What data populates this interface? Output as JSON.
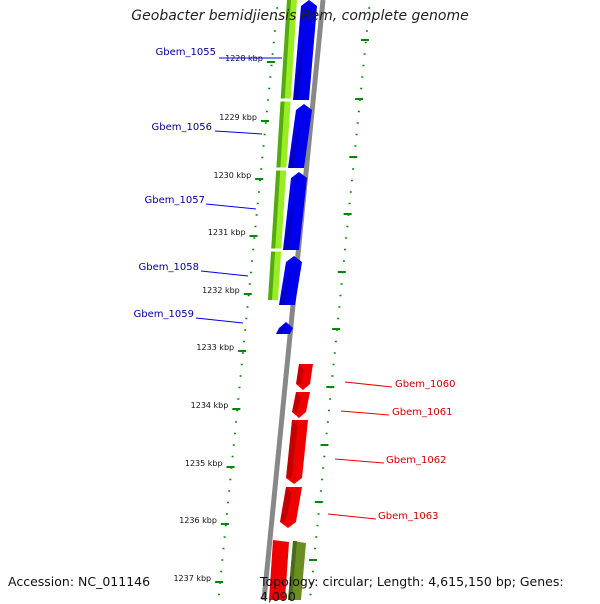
{
  "title": "Geobacter bemidjiensis Bem, complete genome",
  "accession": "Accession: NC_011146",
  "topology": "Topology: circular; Length: 4,615,150 bp; Genes: 4,090",
  "colors": {
    "gene_blue": "#0000ee",
    "gene_red": "#ee0000",
    "cds_green": "#99ee22",
    "cds_olive": "#6b8e23",
    "backbone": "#888888",
    "tick_green": "#008800",
    "label_blue": "#000099",
    "label_red": "#cc0000"
  },
  "kbp_labels": [
    "1228 kbp",
    "1229 kbp",
    "1230 kbp",
    "1231 kbp",
    "1232 kbp",
    "1233 kbp",
    "1234 kbp",
    "1235 kbp",
    "1236 kbp",
    "1237 kbp"
  ],
  "genes": [
    {
      "name": "Gbem_1055",
      "strand": "+",
      "color": "blue"
    },
    {
      "name": "Gbem_1056",
      "strand": "+",
      "color": "blue"
    },
    {
      "name": "Gbem_1057",
      "strand": "+",
      "color": "blue"
    },
    {
      "name": "Gbem_1058",
      "strand": "+",
      "color": "blue"
    },
    {
      "name": "Gbem_1059",
      "strand": "+",
      "color": "blue"
    },
    {
      "name": "Gbem_1060",
      "strand": "-",
      "color": "red"
    },
    {
      "name": "Gbem_1061",
      "strand": "-",
      "color": "red"
    },
    {
      "name": "Gbem_1062",
      "strand": "-",
      "color": "red"
    },
    {
      "name": "Gbem_1063",
      "strand": "-",
      "color": "red"
    }
  ]
}
